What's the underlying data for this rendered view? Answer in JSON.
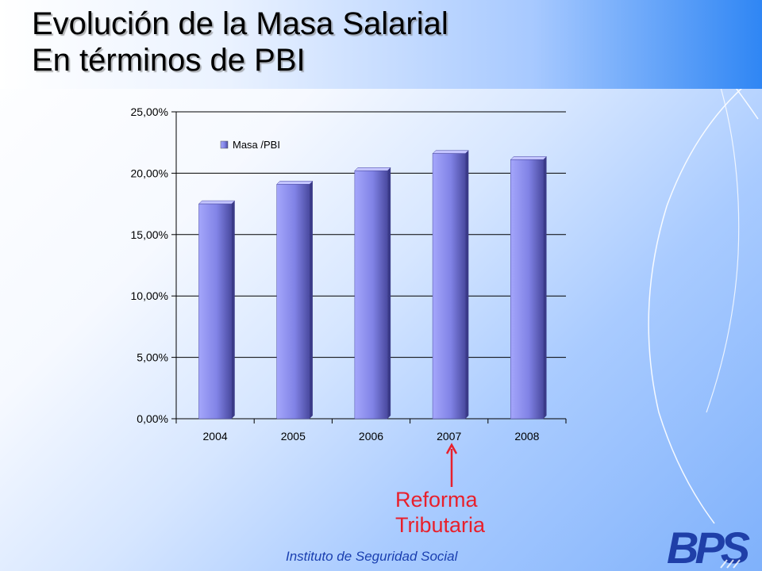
{
  "slide": {
    "title_line1": "Evolución de la Masa Salarial",
    "title_line2": "En términos de PBI",
    "annotation_line1": "Reforma",
    "annotation_line2": "Tributaria",
    "footer": "Instituto de Seguridad Social",
    "logo_text": "BPS"
  },
  "colors": {
    "bar_light": "#9a9cf6",
    "bar_dark": "#4a4aa0",
    "annotation": "#e8202c",
    "footer": "#1a3fb0",
    "logo": "#1f3fa8"
  },
  "chart_data": {
    "type": "bar",
    "categories": [
      "2004",
      "2005",
      "2006",
      "2007",
      "2008"
    ],
    "series": [
      {
        "name": "Masa /PBI",
        "values": [
          17.5,
          19.1,
          20.2,
          21.6,
          21.1
        ]
      }
    ],
    "ylim": [
      0,
      25
    ],
    "yticks": [
      0,
      5,
      10,
      15,
      20,
      25
    ],
    "ytick_labels": [
      "0,00%",
      "5,00%",
      "10,00%",
      "15,00%",
      "20,00%",
      "25,00%"
    ],
    "grid": true,
    "legend_position": "top-left",
    "annotation": {
      "category": "2007",
      "text": "Reforma Tributaria"
    }
  }
}
